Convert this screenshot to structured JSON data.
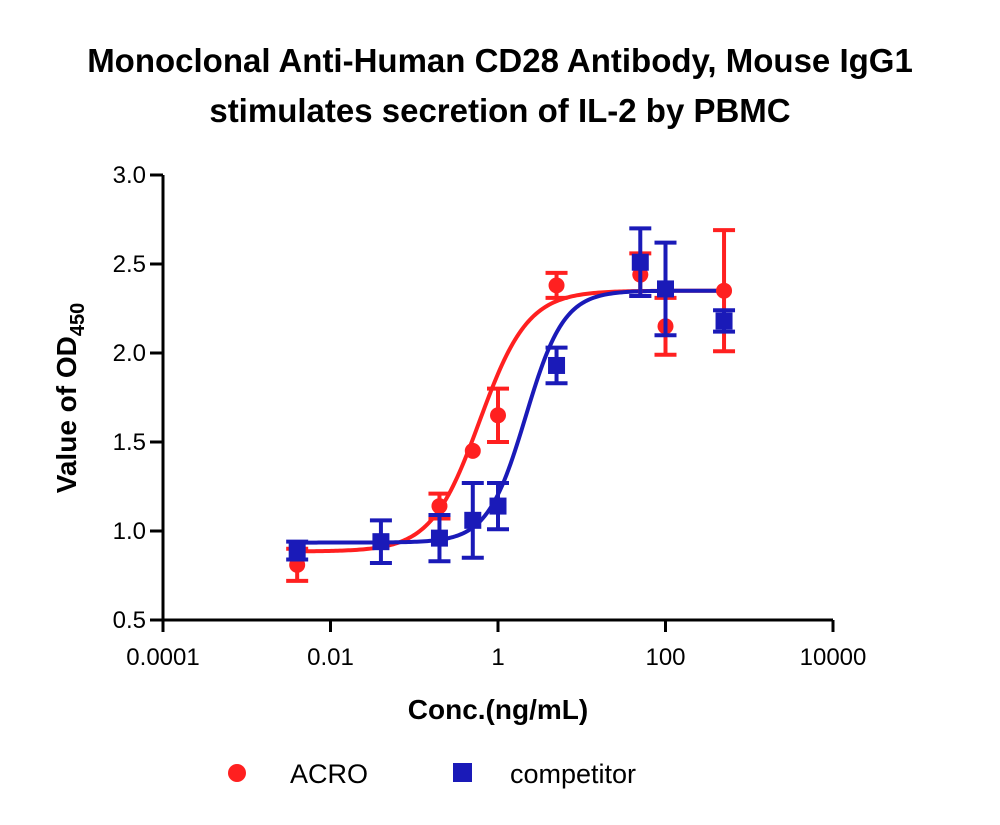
{
  "chart_data": {
    "type": "scatter",
    "title_lines": [
      "Monoclonal Anti-Human CD28 Antibody, Mouse IgG1",
      "stimulates secretion of IL-2 by PBMC"
    ],
    "xlabel": "Conc.(ng/mL)",
    "ylabel_main": "Value of OD",
    "ylabel_sub": "450",
    "x_scale": "log",
    "xlim": [
      0.0001,
      10000
    ],
    "ylim": [
      0.5,
      3.0
    ],
    "x_ticks": [
      0.0001,
      0.01,
      1,
      100,
      10000
    ],
    "x_tick_labels": [
      "0.0001",
      "0.01",
      "1",
      "100",
      "10000"
    ],
    "y_ticks": [
      0.5,
      1.0,
      1.5,
      2.0,
      2.5,
      3.0
    ],
    "y_tick_labels": [
      "0.5",
      "1.0",
      "1.5",
      "2.0",
      "2.5",
      "3.0"
    ],
    "grid": false,
    "legend_position": "bottom",
    "series": [
      {
        "name": "ACRO",
        "color": "#ff2020",
        "marker": "circle",
        "points": [
          {
            "x": 0.004,
            "y": 0.81,
            "err": 0.09
          },
          {
            "x": 0.2,
            "y": 1.14,
            "err": 0.07
          },
          {
            "x": 0.5,
            "y": 1.45,
            "err": 0.0
          },
          {
            "x": 1.0,
            "y": 1.65,
            "err": 0.15
          },
          {
            "x": 5.0,
            "y": 2.38,
            "err": 0.07
          },
          {
            "x": 50.0,
            "y": 2.44,
            "err": 0.12
          },
          {
            "x": 100.0,
            "y": 2.15,
            "err": 0.16
          },
          {
            "x": 500.0,
            "y": 2.35,
            "err": 0.34
          }
        ],
        "fit": {
          "bottom": 0.885,
          "top": 2.35,
          "log_ec50": -0.22,
          "hill": 1.5
        }
      },
      {
        "name": "competitor",
        "color": "#1a1ab8",
        "marker": "square",
        "points": [
          {
            "x": 0.004,
            "y": 0.89,
            "err": 0.05
          },
          {
            "x": 0.04,
            "y": 0.94,
            "err": 0.12
          },
          {
            "x": 0.2,
            "y": 0.96,
            "err": 0.13
          },
          {
            "x": 0.5,
            "y": 1.06,
            "err": 0.21
          },
          {
            "x": 1.0,
            "y": 1.14,
            "err": 0.13
          },
          {
            "x": 5.0,
            "y": 1.93,
            "err": 0.1
          },
          {
            "x": 50.0,
            "y": 2.51,
            "err": 0.19
          },
          {
            "x": 100.0,
            "y": 2.36,
            "err": 0.26
          },
          {
            "x": 500.0,
            "y": 2.18,
            "err": 0.06
          }
        ],
        "fit": {
          "bottom": 0.935,
          "top": 2.35,
          "log_ec50": 0.33,
          "hill": 1.9
        }
      }
    ]
  }
}
